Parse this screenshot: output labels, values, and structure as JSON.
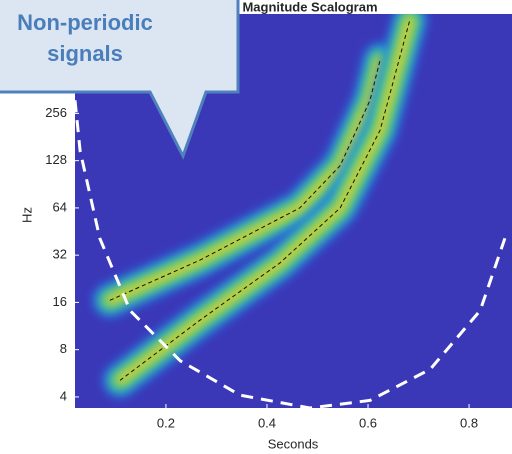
{
  "chart_data": {
    "type": "scalogram",
    "title": "Magnitude Scalogram",
    "xlabel": "Seconds",
    "ylabel": "Hz",
    "xlim": [
      0.02,
      0.885
    ],
    "ylim": [
      3.4,
      1100
    ],
    "ylog": true,
    "xticks": [
      0.2,
      0.4,
      0.6,
      0.8
    ],
    "yticks": [
      4,
      8,
      16,
      32,
      64,
      128,
      256
    ],
    "background": "#3b38b8",
    "glow_colors": [
      "#2b7fe0",
      "#25c2b2",
      "#96d33c",
      "#f5cf37"
    ],
    "series": [
      {
        "color": "#111111",
        "dash": true,
        "glow": true,
        "x": [
          0.089,
          0.267,
          0.465,
          0.545,
          0.604,
          0.624
        ],
        "y": [
          16.5,
          29.7,
          64,
          119,
          310,
          560
        ]
      },
      {
        "color": "#111111",
        "dash": true,
        "glow": true,
        "x": [
          0.109,
          0.267,
          0.426,
          0.545,
          0.624,
          0.683
        ],
        "y": [
          5.1,
          12.3,
          28.6,
          64,
          200,
          1011
        ]
      },
      {
        "color": "#ffffff",
        "dash": true,
        "glow": false,
        "x": [
          0.02,
          0.03,
          0.069,
          0.129,
          0.228,
          0.347,
          0.485,
          0.604,
          0.723,
          0.822,
          0.871
        ],
        "y": [
          310,
          148,
          41,
          14.2,
          6.8,
          4.1,
          3.4,
          3.8,
          6,
          14.2,
          41
        ]
      }
    ],
    "callout": [
      "Non-periodic",
      "signals"
    ]
  }
}
